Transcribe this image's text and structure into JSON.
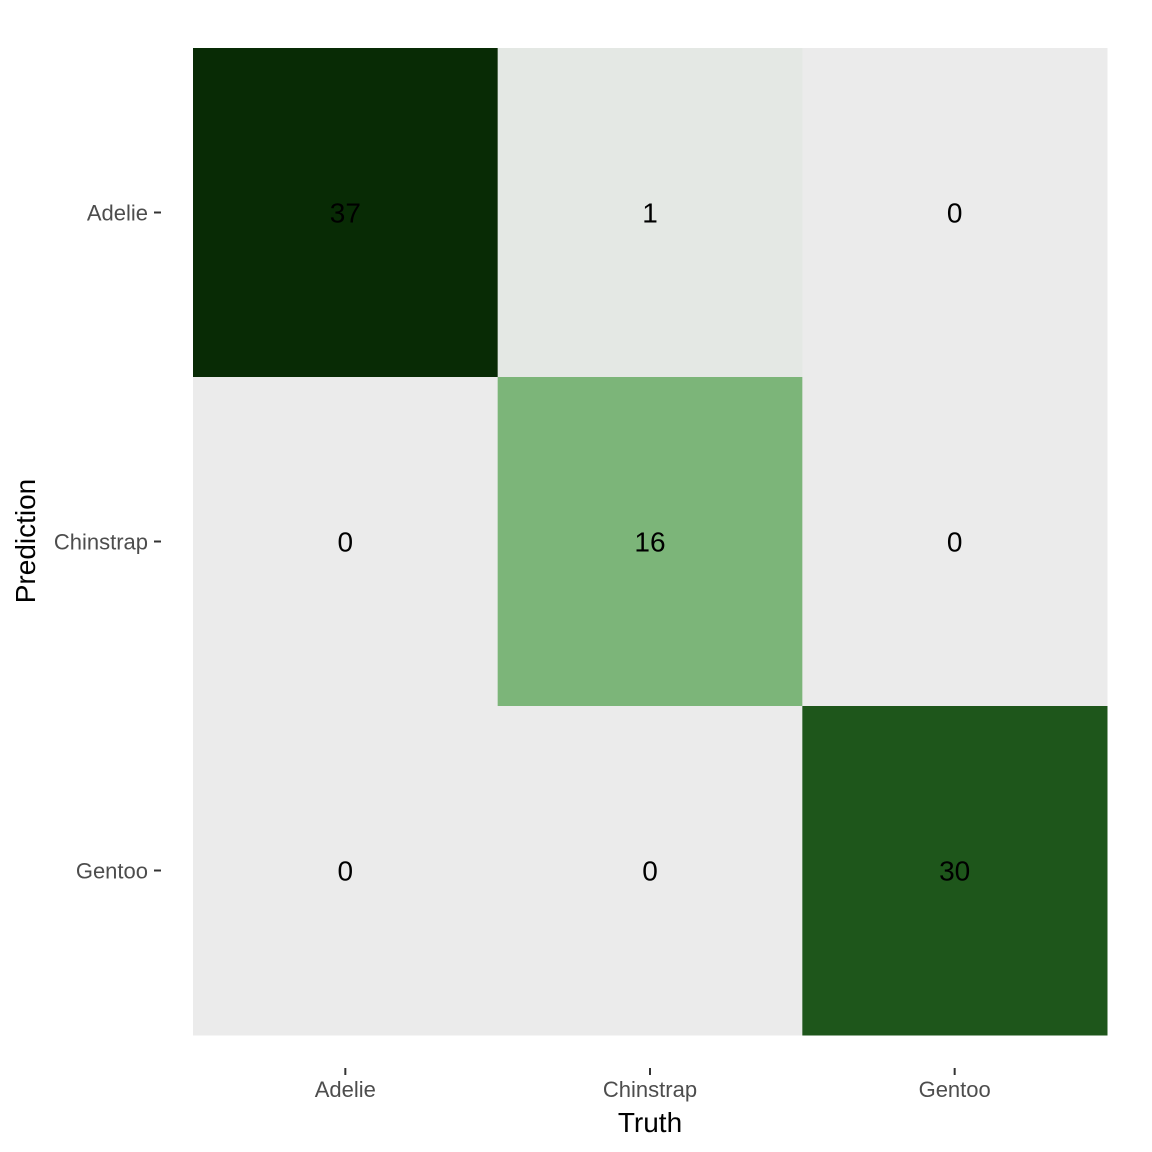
{
  "chart_data": {
    "type": "heatmap",
    "title": "",
    "xlabel": "Truth",
    "ylabel": "Prediction",
    "x_categories": [
      "Adelie",
      "Chinstrap",
      "Gentoo"
    ],
    "y_categories": [
      "Adelie",
      "Chinstrap",
      "Gentoo"
    ],
    "values": [
      [
        37,
        1,
        0
      ],
      [
        0,
        16,
        0
      ],
      [
        0,
        0,
        30
      ]
    ],
    "color_low": "#ebebeb",
    "color_high": "#082b05",
    "panel_background": "#ebebeb",
    "grid": false,
    "legend": "none"
  }
}
